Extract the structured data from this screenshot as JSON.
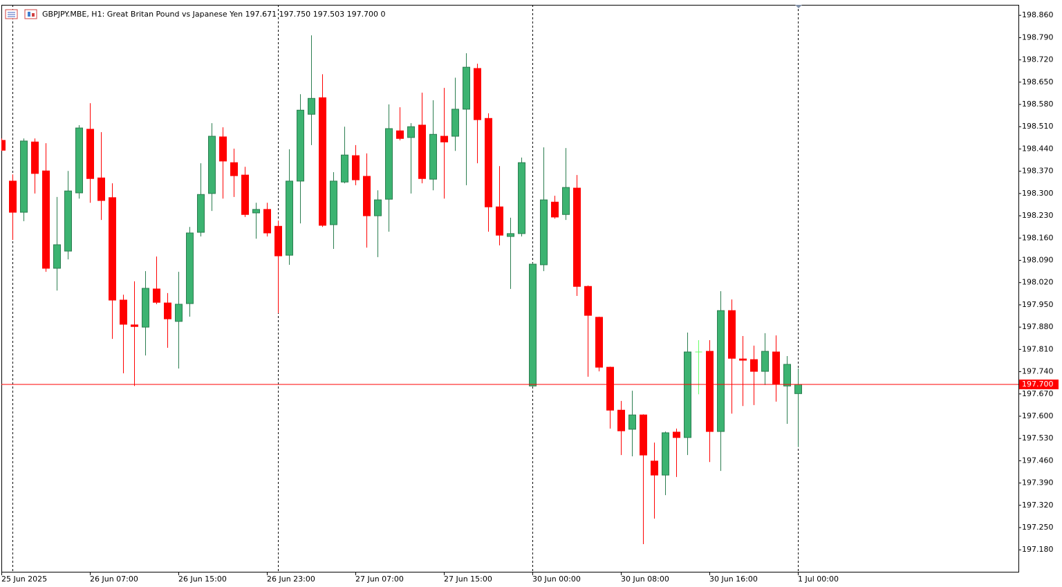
{
  "chart_data": {
    "type": "candlestick",
    "title": "GBPJPY.MBE, H1:  Great Britan Pound vs Japanese Yen  197.671 197.750 197.503 197.700  0",
    "categories": [
      "25 Jun 2025",
      null,
      null,
      null,
      null,
      null,
      null,
      null,
      "26 Jun 07:00",
      null,
      null,
      null,
      null,
      null,
      null,
      null,
      "26 Jun 15:00",
      null,
      null,
      null,
      null,
      null,
      null,
      null,
      "26 Jun 23:00",
      null,
      null,
      null,
      null,
      null,
      null,
      null,
      "27 Jun 07:00",
      null,
      null,
      null,
      null,
      null,
      null,
      null,
      "27 Jun 15:00",
      null,
      null,
      null,
      null,
      null,
      null,
      null,
      "30 Jun 00:00",
      null,
      null,
      null,
      null,
      null,
      null,
      null,
      "30 Jun 08:00",
      null,
      null,
      null,
      null,
      null,
      null,
      null,
      "30 Jun 16:00",
      null,
      null,
      null,
      null,
      null,
      null,
      null,
      "1 Jul 00:00"
    ],
    "open": [
      198.467,
      198.339,
      198.241,
      198.462,
      198.371,
      198.065,
      198.119,
      198.302,
      198.502,
      198.349,
      198.287,
      197.965,
      197.887,
      197.88,
      198.0,
      197.956,
      197.898,
      197.954,
      198.178,
      198.3,
      198.478,
      198.397,
      198.358,
      198.239,
      198.25,
      198.197,
      198.106,
      198.339,
      198.549,
      198.601,
      198.202,
      198.336,
      198.419,
      198.354,
      198.23,
      198.282,
      198.497,
      198.476,
      198.515,
      198.345,
      198.48,
      198.48,
      198.565,
      198.693,
      198.536,
      198.258,
      198.165,
      198.174,
      197.695,
      198.076,
      198.273,
      198.234,
      198.317,
      198.008,
      197.911,
      197.754,
      197.619,
      197.559,
      197.604,
      197.459,
      197.415,
      197.55,
      197.533,
      197.802,
      197.804,
      197.552,
      197.932,
      197.78,
      197.778,
      197.741,
      197.802,
      197.695,
      197.671
    ],
    "high": [
      198.473,
      198.36,
      198.473,
      198.473,
      198.458,
      198.289,
      198.371,
      198.515,
      198.584,
      198.493,
      198.332,
      197.982,
      198.024,
      198.056,
      198.102,
      197.987,
      198.054,
      198.195,
      198.395,
      198.521,
      198.508,
      198.441,
      198.384,
      198.271,
      198.271,
      198.215,
      198.439,
      198.612,
      198.797,
      198.675,
      198.367,
      198.51,
      198.452,
      198.426,
      198.31,
      198.58,
      198.571,
      198.521,
      198.617,
      198.593,
      198.632,
      198.664,
      198.741,
      198.708,
      198.552,
      198.386,
      198.224,
      198.413,
      198.082,
      198.445,
      198.293,
      198.443,
      198.358,
      198.011,
      197.913,
      197.756,
      197.648,
      197.68,
      197.606,
      197.517,
      197.552,
      197.561,
      197.863,
      197.839,
      197.839,
      197.993,
      197.967,
      197.852,
      197.822,
      197.861,
      197.854,
      197.789,
      197.75
    ],
    "low": [
      198.434,
      198.154,
      198.213,
      198.3,
      198.054,
      197.995,
      198.093,
      198.284,
      198.271,
      198.217,
      197.843,
      197.735,
      197.695,
      197.791,
      197.952,
      197.815,
      197.75,
      197.913,
      198.165,
      198.245,
      198.284,
      198.289,
      198.226,
      198.158,
      198.165,
      197.924,
      198.076,
      198.206,
      198.452,
      198.195,
      198.126,
      198.332,
      198.326,
      198.13,
      198.1,
      198.18,
      198.467,
      198.3,
      198.332,
      198.31,
      198.284,
      198.434,
      198.326,
      198.395,
      198.18,
      198.137,
      198.0,
      198.165,
      197.691,
      198.056,
      198.221,
      198.217,
      197.978,
      197.724,
      197.741,
      197.561,
      197.478,
      197.474,
      197.198,
      197.278,
      197.352,
      197.409,
      197.478,
      197.669,
      197.456,
      197.428,
      197.608,
      197.632,
      197.635,
      197.698,
      197.646,
      197.576,
      197.503
    ],
    "close": [
      198.436,
      198.241,
      198.465,
      198.363,
      198.065,
      198.139,
      198.308,
      198.506,
      198.347,
      198.278,
      197.965,
      197.889,
      197.882,
      198.002,
      197.958,
      197.906,
      197.952,
      198.176,
      198.297,
      198.48,
      198.402,
      198.356,
      198.234,
      198.25,
      198.176,
      198.104,
      198.339,
      198.562,
      198.599,
      198.2,
      198.339,
      198.421,
      198.343,
      198.23,
      198.28,
      198.504,
      198.473,
      198.51,
      198.347,
      198.486,
      198.462,
      198.565,
      198.697,
      198.532,
      198.258,
      198.169,
      198.174,
      198.397,
      198.078,
      198.28,
      198.226,
      198.319,
      198.008,
      197.917,
      197.754,
      197.619,
      197.554,
      197.604,
      197.478,
      197.415,
      197.548,
      197.533,
      197.802,
      197.802,
      197.552,
      197.932,
      197.782,
      197.776,
      197.741,
      197.804,
      197.702,
      197.763,
      197.7
    ],
    "colors": {
      "up": "#3cb371",
      "up_edge": "#2a7d4f",
      "down": "#ff0000",
      "doji": "#66ff66"
    },
    "ylim": [
      197.111,
      198.893
    ],
    "yticks": [
      {
        "value": 198.86,
        "label": "198.860"
      },
      {
        "value": 198.79,
        "label": "198.790"
      },
      {
        "value": 198.72,
        "label": "198.720"
      },
      {
        "value": 198.65,
        "label": "198.650"
      },
      {
        "value": 198.58,
        "label": "198.580"
      },
      {
        "value": 198.51,
        "label": "198.510"
      },
      {
        "value": 198.44,
        "label": "198.440"
      },
      {
        "value": 198.37,
        "label": "198.370"
      },
      {
        "value": 198.3,
        "label": "198.300"
      },
      {
        "value": 198.23,
        "label": "198.230"
      },
      {
        "value": 198.16,
        "label": "198.160"
      },
      {
        "value": 198.09,
        "label": "198.090"
      },
      {
        "value": 198.02,
        "label": "198.020"
      },
      {
        "value": 197.95,
        "label": "197.950"
      },
      {
        "value": 197.88,
        "label": "197.880"
      },
      {
        "value": 197.81,
        "label": "197.810"
      },
      {
        "value": 197.74,
        "label": "197.740"
      },
      {
        "value": 197.67,
        "label": "197.670"
      },
      {
        "value": 197.6,
        "label": "197.600"
      },
      {
        "value": 197.53,
        "label": "197.530"
      },
      {
        "value": 197.46,
        "label": "197.460"
      },
      {
        "value": 197.39,
        "label": "197.390"
      },
      {
        "value": 197.32,
        "label": "197.320"
      },
      {
        "value": 197.25,
        "label": "197.250"
      },
      {
        "value": 197.18,
        "label": "197.180"
      }
    ],
    "last_price": {
      "value": 197.7,
      "label": "197.700"
    },
    "last_price_color": "#ff0000",
    "period_separators": [
      1,
      25,
      48,
      72
    ]
  }
}
